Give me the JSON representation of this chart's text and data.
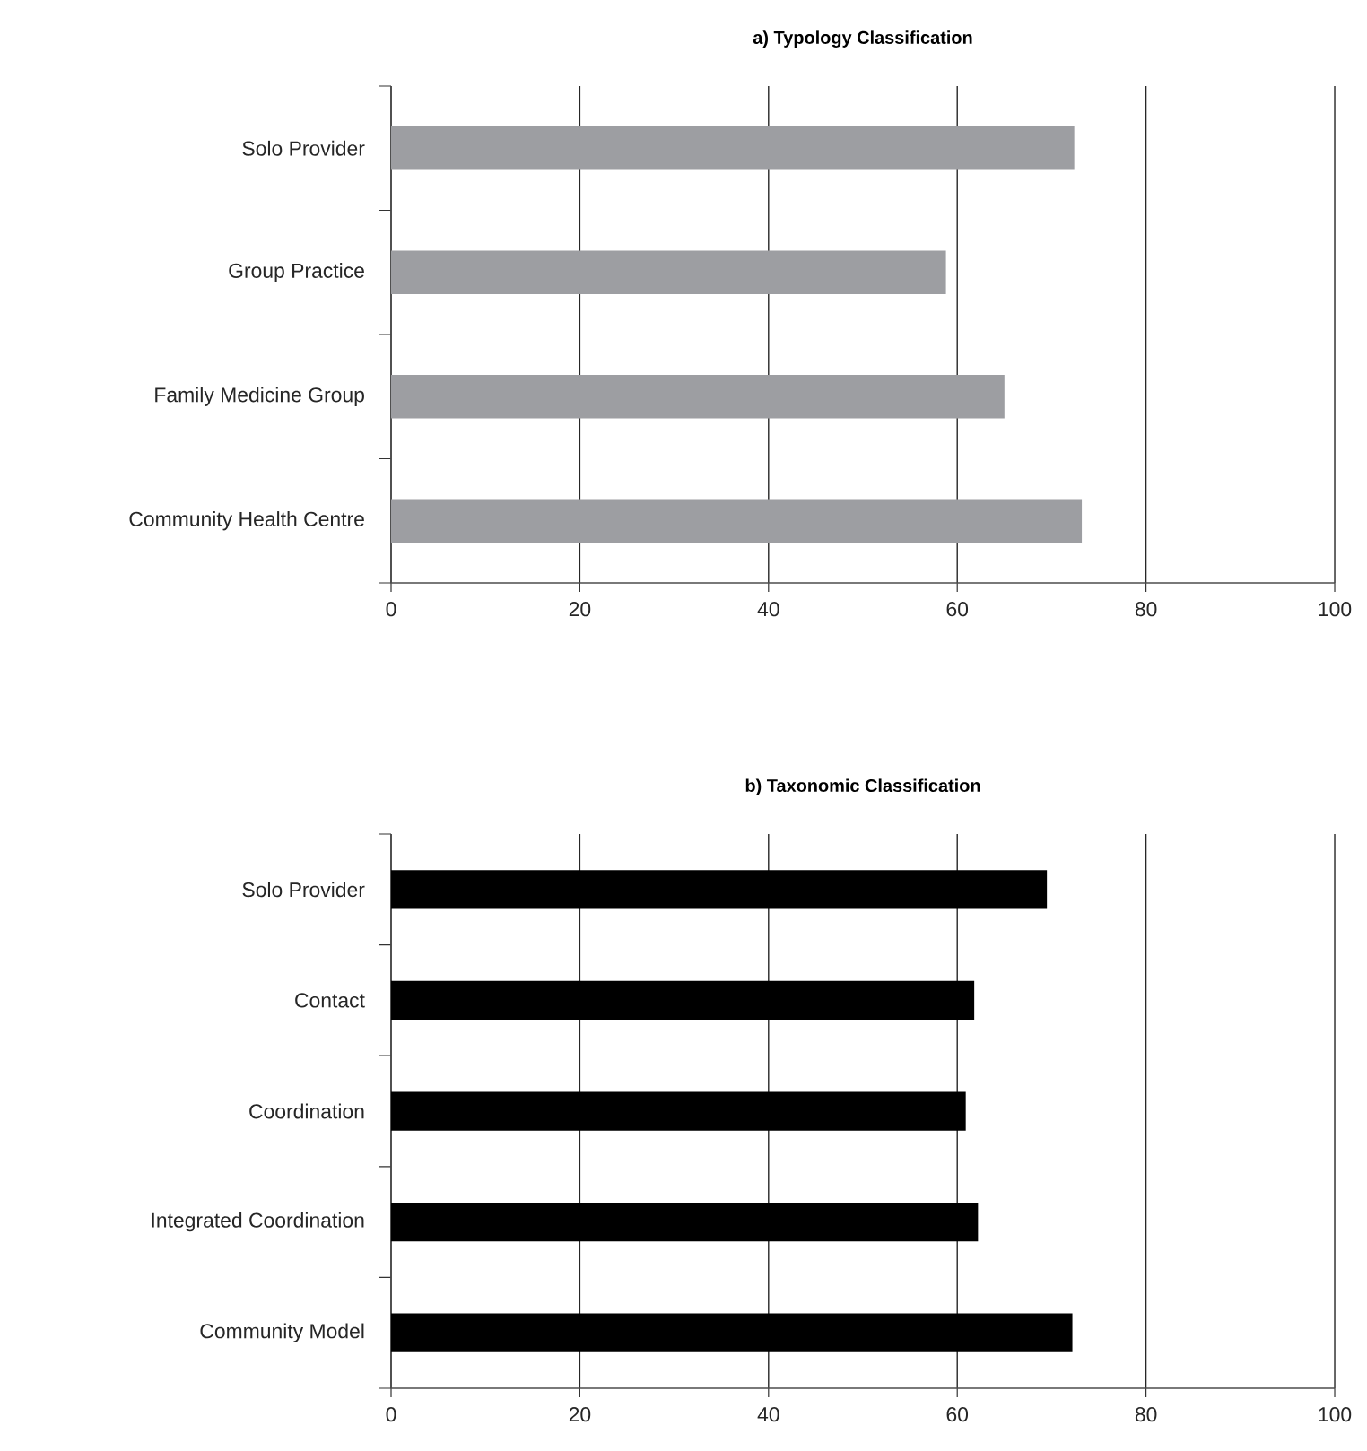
{
  "chart_data": [
    {
      "type": "bar",
      "orientation": "horizontal",
      "title": "**a) Typology Classification**",
      "categories": [
        "Solo Provider",
        "Group Practice",
        "Family Medicine Group",
        "Community Health Centre"
      ],
      "values": [
        72.4,
        58.8,
        65.0,
        73.2
      ],
      "color": "#9d9ea2",
      "xlim": [
        0,
        100
      ],
      "xticks": [
        0,
        20,
        40,
        60,
        80,
        100
      ],
      "grid": "x"
    },
    {
      "type": "bar",
      "orientation": "horizontal",
      "title": "**b) Taxonomic Classification**",
      "categories": [
        "Solo Provider",
        "Contact",
        "Coordination",
        "Integrated Coordination",
        "Community Model"
      ],
      "values": [
        69.5,
        61.8,
        60.9,
        62.2,
        72.2
      ],
      "color": "#000000",
      "xlim": [
        0,
        100
      ],
      "xticks": [
        0,
        20,
        40,
        60,
        80,
        100
      ],
      "grid": "x"
    }
  ]
}
